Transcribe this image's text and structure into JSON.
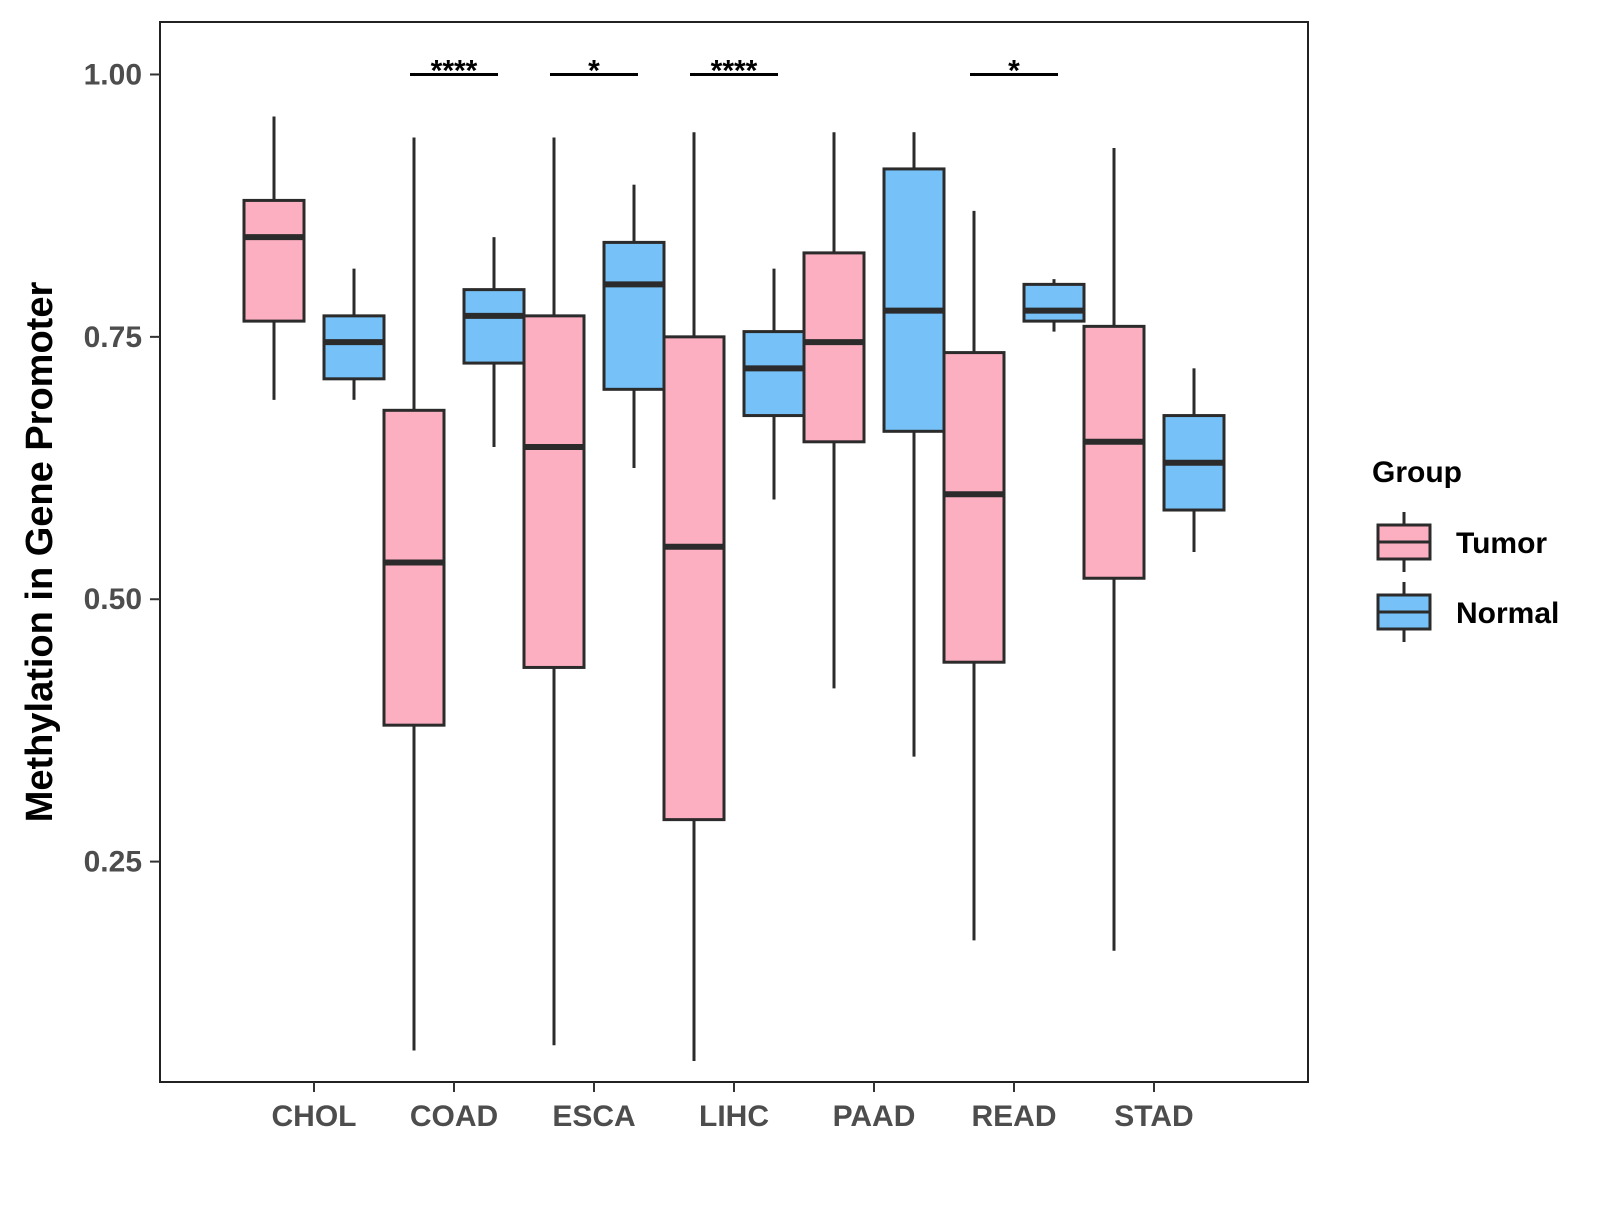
{
  "chart_data": {
    "type": "boxplot",
    "title": "",
    "xlabel": "",
    "ylabel": "Methylation in Gene Promoter",
    "ylim": [
      0.04,
      1.05
    ],
    "yticks": [
      {
        "value": 0.25,
        "label": "0.25"
      },
      {
        "value": 0.5,
        "label": "0.50"
      },
      {
        "value": 0.75,
        "label": "0.75"
      },
      {
        "value": 1.0,
        "label": "1.00"
      }
    ],
    "categories": [
      "CHOL",
      "COAD",
      "ESCA",
      "LIHC",
      "PAAD",
      "READ",
      "STAD"
    ],
    "legend": {
      "title": "Group",
      "position": "right",
      "items": [
        {
          "name": "Tumor",
          "color": "#FDAFC2"
        },
        {
          "name": "Normal",
          "color": "#75C1F8"
        }
      ]
    },
    "series": [
      {
        "name": "Tumor",
        "color": "#FDAFC2",
        "boxes": [
          {
            "category": "CHOL",
            "min": 0.69,
            "q1": 0.765,
            "median": 0.845,
            "q3": 0.88,
            "max": 0.96
          },
          {
            "category": "COAD",
            "min": 0.07,
            "q1": 0.38,
            "median": 0.535,
            "q3": 0.68,
            "max": 0.94
          },
          {
            "category": "ESCA",
            "min": 0.075,
            "q1": 0.435,
            "median": 0.645,
            "q3": 0.77,
            "max": 0.94
          },
          {
            "category": "LIHC",
            "min": 0.06,
            "q1": 0.29,
            "median": 0.55,
            "q3": 0.75,
            "max": 0.945
          },
          {
            "category": "PAAD",
            "min": 0.415,
            "q1": 0.65,
            "median": 0.745,
            "q3": 0.83,
            "max": 0.945
          },
          {
            "category": "READ",
            "min": 0.175,
            "q1": 0.44,
            "median": 0.6,
            "q3": 0.735,
            "max": 0.87
          },
          {
            "category": "STAD",
            "min": 0.165,
            "q1": 0.52,
            "median": 0.65,
            "q3": 0.76,
            "max": 0.93
          }
        ]
      },
      {
        "name": "Normal",
        "color": "#75C1F8",
        "boxes": [
          {
            "category": "CHOL",
            "min": 0.69,
            "q1": 0.71,
            "median": 0.745,
            "q3": 0.77,
            "max": 0.815
          },
          {
            "category": "COAD",
            "min": 0.645,
            "q1": 0.725,
            "median": 0.77,
            "q3": 0.795,
            "max": 0.845
          },
          {
            "category": "ESCA",
            "min": 0.625,
            "q1": 0.7,
            "median": 0.8,
            "q3": 0.84,
            "max": 0.895
          },
          {
            "category": "LIHC",
            "min": 0.595,
            "q1": 0.675,
            "median": 0.72,
            "q3": 0.755,
            "max": 0.815
          },
          {
            "category": "PAAD",
            "min": 0.35,
            "q1": 0.66,
            "median": 0.775,
            "q3": 0.91,
            "max": 0.945
          },
          {
            "category": "READ",
            "min": 0.755,
            "q1": 0.765,
            "median": 0.775,
            "q3": 0.8,
            "max": 0.805
          },
          {
            "category": "STAD",
            "min": 0.545,
            "q1": 0.585,
            "median": 0.63,
            "q3": 0.675,
            "max": 0.72
          }
        ]
      }
    ],
    "significance": [
      {
        "category": "COAD",
        "label": "****"
      },
      {
        "category": "ESCA",
        "label": "*"
      },
      {
        "category": "LIHC",
        "label": "****"
      },
      {
        "category": "READ",
        "label": "*"
      }
    ],
    "grid": false
  }
}
